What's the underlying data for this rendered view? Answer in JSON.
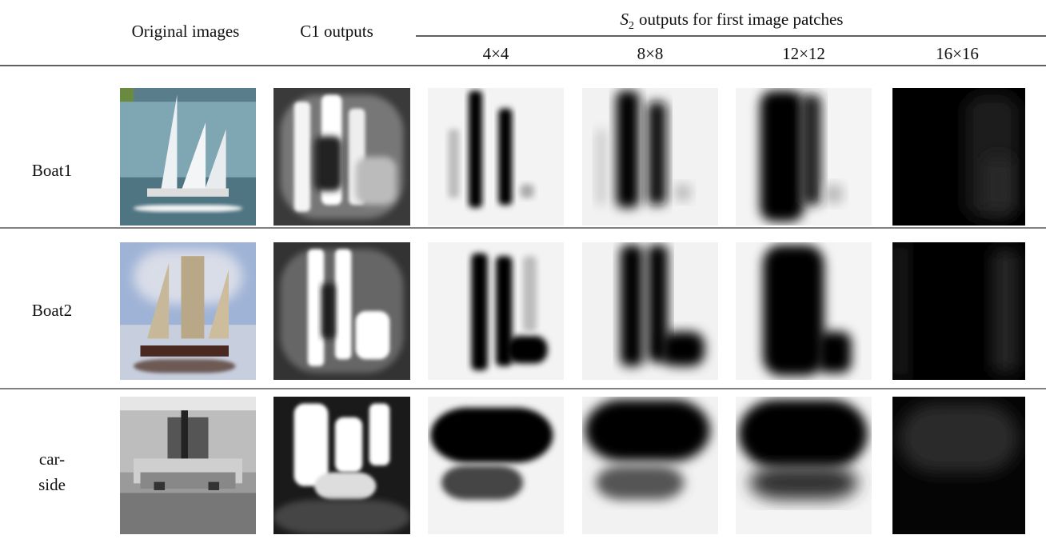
{
  "header": {
    "col_original": "Original images",
    "col_c1": "C1 outputs",
    "s2_symbol": "S",
    "s2_subscript": "2",
    "s2_text": "outputs for first image patches",
    "patch_sizes": [
      "4×4",
      "8×8",
      "12×12",
      "16×16"
    ]
  },
  "rows": [
    {
      "label_lines": [
        "Boat1"
      ]
    },
    {
      "label_lines": [
        "Boat2"
      ]
    },
    {
      "label_lines": [
        "car-",
        "side"
      ]
    }
  ]
}
